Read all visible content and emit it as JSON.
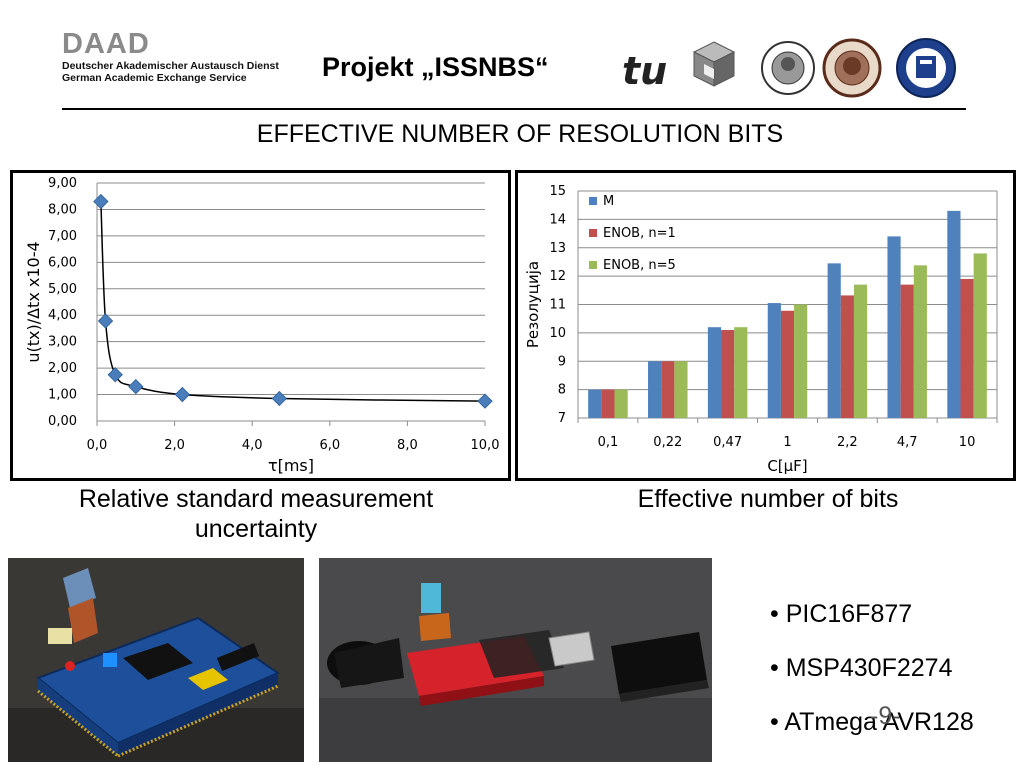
{
  "header": {
    "org_abbr": "DAAD",
    "org_line1": "Deutscher Akademischer Austausch Dienst",
    "org_line2": "German Academic Exchange Service",
    "project_title": "Projekt „ISSNBS“",
    "logo_text": "tu"
  },
  "section_title": "EFFECTIVE NUMBER OF RESOLUTION BITS",
  "chart_data": [
    {
      "type": "scatter",
      "x": [
        0.1,
        0.22,
        0.47,
        1.0,
        2.2,
        4.7,
        10.0
      ],
      "y": [
        8.3,
        3.78,
        1.75,
        1.3,
        1.0,
        0.85,
        0.75
      ],
      "xlabel": "τ[ms]",
      "ylabel": "u(tx)/Δtx x10-4",
      "xlim": [
        0,
        10
      ],
      "ylim": [
        0,
        9
      ],
      "x_ticks": [
        "0,0",
        "2,0",
        "4,0",
        "6,0",
        "8,0",
        "10,0"
      ],
      "y_ticks": [
        "0,00",
        "1,00",
        "2,00",
        "3,00",
        "4,00",
        "5,00",
        "6,00",
        "7,00",
        "8,00",
        "9,00"
      ],
      "grid": true,
      "marker_color": "#4a7ebb"
    },
    {
      "type": "bar",
      "categories": [
        "0,1",
        "0,22",
        "0,47",
        "1",
        "2,2",
        "4,7",
        "10"
      ],
      "series": [
        {
          "name": "M",
          "values": [
            8,
            9,
            10.2,
            11.05,
            12.45,
            13.4,
            14.3
          ],
          "color": "#4f81bd"
        },
        {
          "name": "ENOB, n=1",
          "values": [
            8,
            9,
            10.1,
            10.78,
            11.32,
            11.7,
            11.9
          ],
          "color": "#c0504d"
        },
        {
          "name": "ENOB, n=5",
          "values": [
            8,
            9,
            10.2,
            11.0,
            11.7,
            12.38,
            12.8
          ],
          "color": "#9bbb59"
        }
      ],
      "xlabel": "C[μF]",
      "ylabel": "Резолуција",
      "ylim": [
        7,
        15
      ],
      "y_ticks": [
        "7",
        "8",
        "9",
        "10",
        "11",
        "12",
        "13",
        "14",
        "15"
      ],
      "legend": "top-left",
      "grid": true
    }
  ],
  "captions": {
    "left": "Relative standard measurement uncertainty",
    "right": "Effective number of bits"
  },
  "bullets": [
    "• PIC16F877",
    "• MSP430F2274",
    "• ATmega AVR128"
  ],
  "page_number": "-9-"
}
